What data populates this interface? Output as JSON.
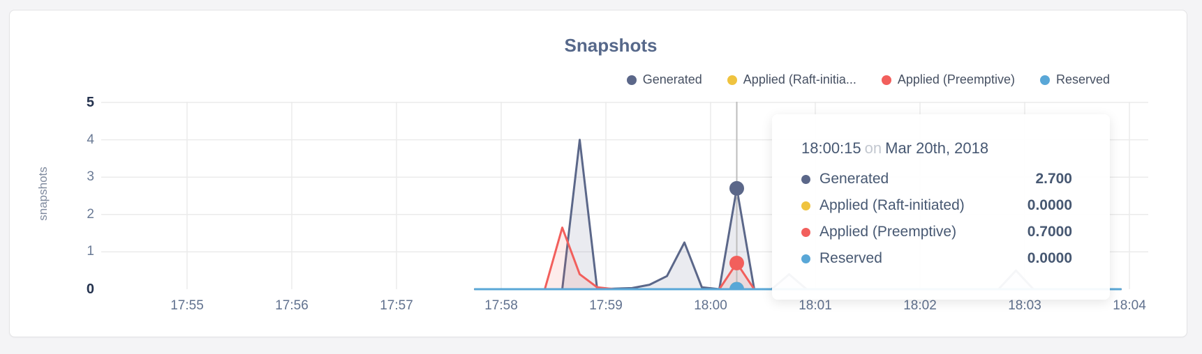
{
  "chart_data": {
    "type": "line",
    "title": "Snapshots",
    "ylabel": "snapshots",
    "xlabel": "",
    "ylim": [
      0,
      5
    ],
    "grid": true,
    "legend_position": "top-right",
    "x_ticks": [
      "17:55",
      "17:56",
      "17:57",
      "17:58",
      "17:59",
      "18:00",
      "18:01",
      "18:02",
      "18:03",
      "18:04"
    ],
    "y_ticks": [
      {
        "label": "0",
        "value": 0,
        "bold": true
      },
      {
        "label": "1",
        "value": 1,
        "bold": false
      },
      {
        "label": "2",
        "value": 2,
        "bold": false
      },
      {
        "label": "3",
        "value": 3,
        "bold": false
      },
      {
        "label": "4",
        "value": 4,
        "bold": false
      },
      {
        "label": "5",
        "value": 5,
        "bold": true
      }
    ],
    "series": [
      {
        "name": "Generated",
        "legend_label": "Generated",
        "color": "#5b6789",
        "fill": "rgba(91,103,137,0.13)",
        "points": [
          [
            "17:57:45",
            0
          ],
          [
            "17:58:25",
            0
          ],
          [
            "17:58:35",
            0
          ],
          [
            "17:58:45",
            4.0
          ],
          [
            "17:58:55",
            0
          ],
          [
            "17:59:15",
            0.03
          ],
          [
            "17:59:25",
            0.12
          ],
          [
            "17:59:35",
            0.35
          ],
          [
            "17:59:45",
            1.25
          ],
          [
            "17:59:55",
            0.05
          ],
          [
            "18:00:05",
            0
          ],
          [
            "18:00:15",
            2.7
          ],
          [
            "18:00:25",
            0
          ],
          [
            "18:00:35",
            0
          ],
          [
            "18:00:45",
            0.4
          ],
          [
            "18:00:55",
            0
          ],
          [
            "18:02:45",
            0
          ],
          [
            "18:02:55",
            0.5
          ],
          [
            "18:03:05",
            0
          ],
          [
            "18:03:55",
            0
          ]
        ]
      },
      {
        "name": "Applied (Raft-initiated)",
        "legend_label": "Applied (Raft-initia...",
        "color": "#efc33f",
        "fill": "rgba(239,195,63,0.12)",
        "points": [
          [
            "17:57:45",
            0
          ],
          [
            "18:03:55",
            0
          ]
        ]
      },
      {
        "name": "Applied (Preemptive)",
        "legend_label": "Applied (Preemptive)",
        "color": "#f25f5c",
        "fill": "rgba(242,95,92,0.12)",
        "points": [
          [
            "17:57:45",
            0
          ],
          [
            "17:58:25",
            0
          ],
          [
            "17:58:35",
            1.65
          ],
          [
            "17:58:45",
            0.4
          ],
          [
            "17:58:55",
            0.05
          ],
          [
            "17:59:05",
            0
          ],
          [
            "18:00:05",
            0
          ],
          [
            "18:00:15",
            0.7
          ],
          [
            "18:00:25",
            0
          ],
          [
            "18:03:55",
            0
          ]
        ]
      },
      {
        "name": "Reserved",
        "legend_label": "Reserved",
        "color": "#59a7d7",
        "fill": "rgba(89,167,215,0.12)",
        "points": [
          [
            "17:57:45",
            0
          ],
          [
            "18:03:55",
            0
          ]
        ]
      }
    ]
  },
  "tooltip": {
    "time": "18:00:15",
    "connector": "on",
    "date": "Mar 20th, 2018",
    "rows": [
      {
        "series": "Generated",
        "label": "Generated",
        "value": "2.700"
      },
      {
        "series": "Applied (Raft-initiated)",
        "label": "Applied (Raft-initiated)",
        "value": "0.0000"
      },
      {
        "series": "Applied (Preemptive)",
        "label": "Applied (Preemptive)",
        "value": "0.7000"
      },
      {
        "series": "Reserved",
        "label": "Reserved",
        "value": "0.0000"
      }
    ]
  }
}
